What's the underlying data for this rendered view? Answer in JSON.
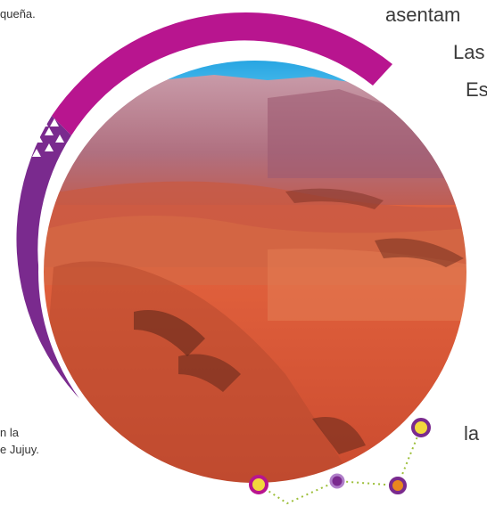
{
  "text": {
    "top_left_fragment": "queña.",
    "bottom_left_line1": "n la",
    "bottom_left_line2": "e Jujuy.",
    "right_line1": "asentam",
    "right_line2": "Las",
    "right_line3": "Es",
    "right_line4": "la"
  },
  "colors": {
    "magenta": "#b8158f",
    "purple": "#7a2a8e",
    "yellow": "#f2d93c",
    "orange": "#e8871e",
    "dotted_line": "#9dbf3a"
  },
  "photo": {
    "subject": "red rock desert landscape with mountains and blue sky (Jujuy)"
  }
}
